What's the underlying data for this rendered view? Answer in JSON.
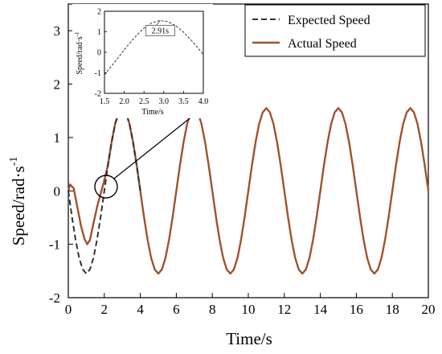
{
  "chart_data": {
    "type": "line",
    "xlabel": "Time/s",
    "ylabel": "Speed/rad·s",
    "ylabel_sup": "-1",
    "xlim": [
      0,
      20
    ],
    "ylim": [
      -2,
      3.5
    ],
    "x_ticks": [
      0,
      2,
      4,
      6,
      8,
      10,
      12,
      14,
      16,
      18,
      20
    ],
    "y_ticks": [
      -2,
      -1,
      0,
      1,
      2,
      3
    ],
    "grid": false,
    "legend": "top-right",
    "series": [
      {
        "name": "Expected Speed",
        "style": "dashed",
        "color": "#333333",
        "x": [
          0,
          0.2,
          0.4,
          0.6,
          0.8,
          1.0,
          1.2,
          1.4,
          1.6,
          1.8,
          2.0,
          2.2,
          2.4,
          2.6,
          2.8,
          3.0,
          3.2,
          3.4,
          3.6,
          3.8,
          4.0
        ],
        "y": [
          0,
          -0.48,
          -0.91,
          -1.25,
          -1.47,
          -1.55,
          -1.47,
          -1.25,
          -0.91,
          -0.48,
          0,
          0.48,
          0.91,
          1.25,
          1.47,
          1.55,
          1.47,
          1.25,
          0.91,
          0.48,
          0
        ]
      },
      {
        "name": "Actual Speed",
        "style": "solid",
        "color": "#a0522d",
        "x": [
          0,
          0.1,
          0.3,
          0.5,
          0.7,
          0.9,
          1.05,
          1.2,
          1.4,
          1.6,
          1.8,
          2.0,
          2.2,
          2.4,
          2.6,
          2.8,
          3.0,
          3.2,
          3.4,
          3.6,
          3.8,
          4.0,
          4.2,
          4.4,
          4.6,
          4.8,
          5.0,
          5.2,
          5.4,
          5.6,
          5.8,
          6.0,
          6.2,
          6.4,
          6.6,
          6.8,
          7.0,
          7.2,
          7.4,
          7.6,
          7.8,
          8.0,
          8.2,
          8.4,
          8.6,
          8.8,
          9.0,
          9.2,
          9.4,
          9.6,
          9.8,
          10.0,
          10.2,
          10.4,
          10.6,
          10.8,
          11.0,
          11.2,
          11.4,
          11.6,
          11.8,
          12.0,
          12.2,
          12.4,
          12.6,
          12.8,
          13.0,
          13.2,
          13.4,
          13.6,
          13.8,
          14.0,
          14.2,
          14.4,
          14.6,
          14.8,
          15.0,
          15.2,
          15.4,
          15.6,
          15.8,
          16.0,
          16.2,
          16.4,
          16.6,
          16.8,
          17.0,
          17.2,
          17.4,
          17.6,
          17.8,
          18.0,
          18.2,
          18.4,
          18.6,
          18.8,
          19.0,
          19.2,
          19.4,
          19.6,
          19.8,
          20.0
        ],
        "y": [
          0,
          0.12,
          0.05,
          -0.3,
          -0.65,
          -0.9,
          -1.0,
          -0.92,
          -0.6,
          -0.3,
          -0.05,
          0.2,
          0.48,
          0.91,
          1.25,
          1.47,
          1.55,
          1.47,
          1.25,
          0.91,
          0.48,
          0,
          -0.48,
          -0.91,
          -1.25,
          -1.47,
          -1.55,
          -1.47,
          -1.25,
          -0.91,
          -0.48,
          0,
          0.48,
          0.91,
          1.25,
          1.47,
          1.55,
          1.47,
          1.25,
          0.91,
          0.48,
          0,
          -0.48,
          -0.91,
          -1.25,
          -1.47,
          -1.55,
          -1.47,
          -1.25,
          -0.91,
          -0.48,
          0,
          0.48,
          0.91,
          1.25,
          1.47,
          1.55,
          1.47,
          1.25,
          0.91,
          0.48,
          0,
          -0.48,
          -0.91,
          -1.25,
          -1.47,
          -1.55,
          -1.47,
          -1.25,
          -0.91,
          -0.48,
          0,
          0.48,
          0.91,
          1.25,
          1.47,
          1.55,
          1.47,
          1.25,
          0.91,
          0.48,
          0,
          -0.48,
          -0.91,
          -1.25,
          -1.47,
          -1.55,
          -1.47,
          -1.25,
          -0.91,
          -0.48,
          0,
          0.48,
          0.91,
          1.25,
          1.47,
          1.55,
          1.47,
          1.25,
          0.91,
          0.48,
          0
        ]
      }
    ],
    "inset": {
      "type": "line",
      "xlabel": "Time/s",
      "ylabel": "Speed/rad·s",
      "ylabel_sup": "-1",
      "xlim": [
        1.5,
        4.0
      ],
      "ylim": [
        -2,
        2
      ],
      "x_ticks": [
        1.5,
        2.0,
        2.5,
        3.0,
        3.5,
        4.0
      ],
      "x_tick_labels": [
        "1.5",
        "2.0",
        "2.5",
        "3.0",
        "3.5",
        "4.0"
      ],
      "y_ticks": [
        -2,
        -1,
        0,
        1,
        2
      ],
      "annotation": {
        "text": "2.91s",
        "x": 2.91,
        "y": 1.55
      },
      "series": [
        {
          "style": "dashed",
          "color": "#333333",
          "x": [
            1.5,
            1.7,
            1.9,
            2.1,
            2.3,
            2.5,
            2.7,
            2.9,
            3.1,
            3.3,
            3.5,
            3.7,
            3.9,
            4.0
          ],
          "y": [
            -1.1,
            -0.62,
            -0.13,
            0.36,
            0.8,
            1.18,
            1.44,
            1.55,
            1.5,
            1.3,
            0.98,
            0.58,
            0.12,
            -0.1
          ]
        }
      ]
    }
  }
}
